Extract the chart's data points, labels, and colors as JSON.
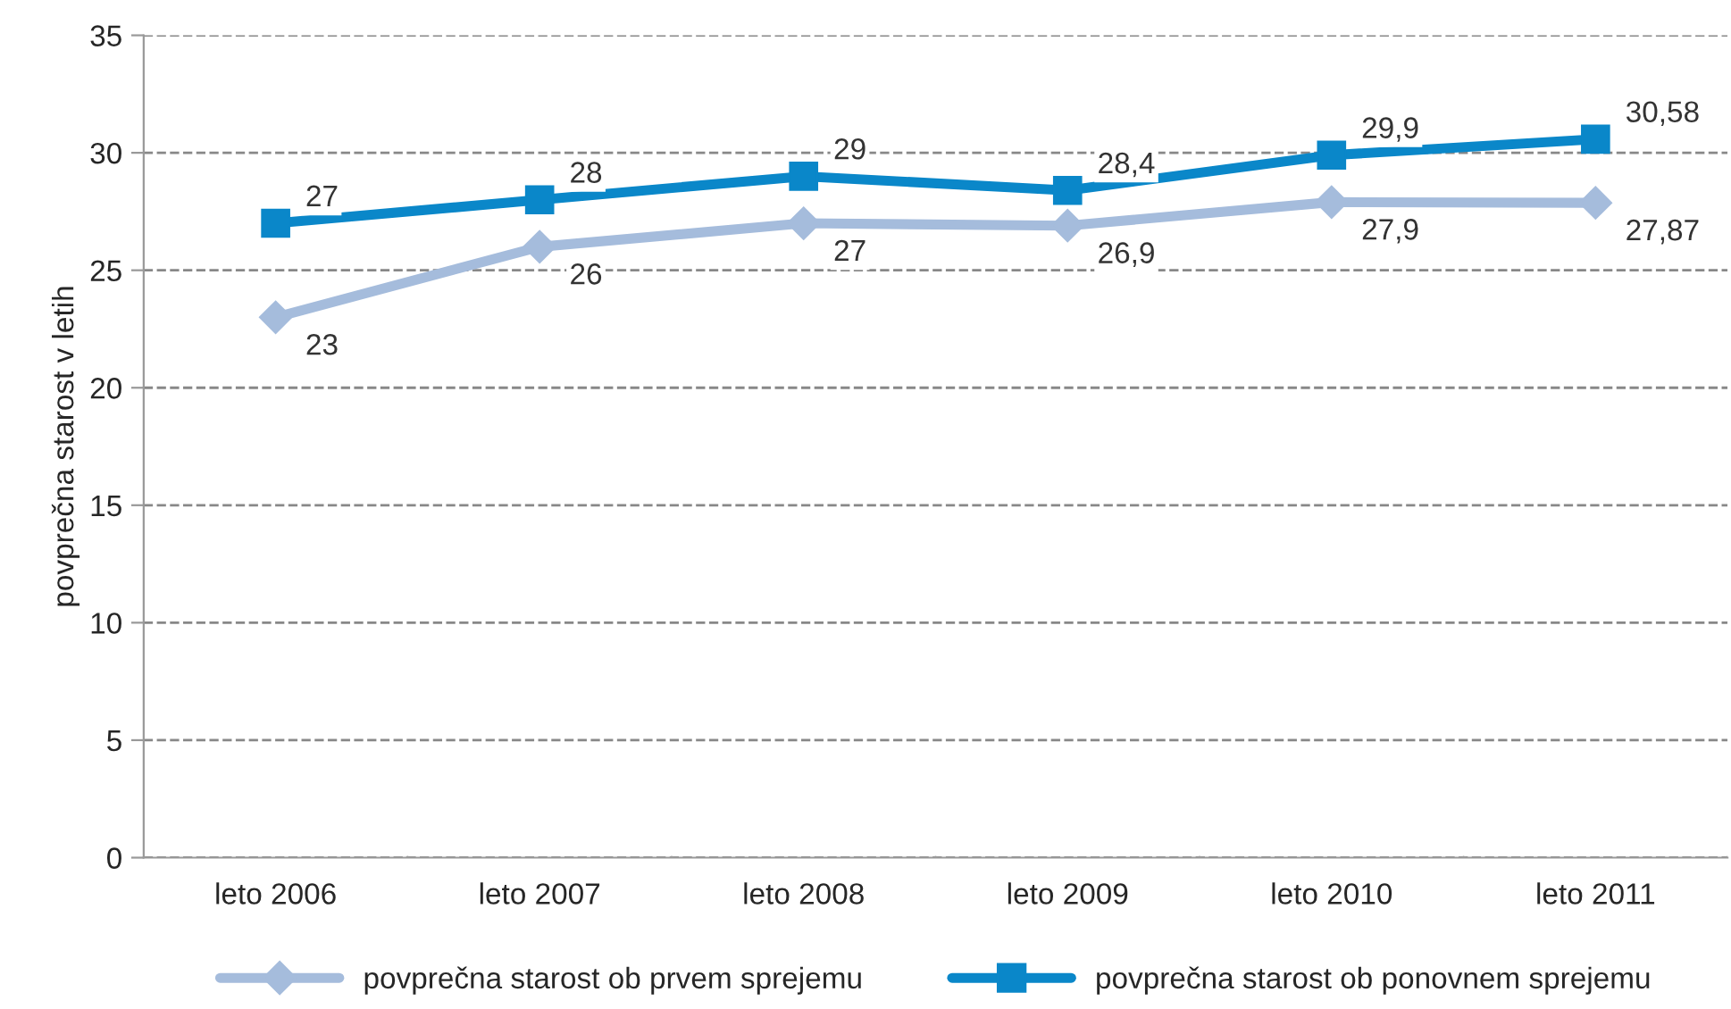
{
  "chart_data": {
    "type": "line",
    "ylabel": "povprečna starost v letih",
    "categories": [
      "leto 2006",
      "leto 2007",
      "leto 2008",
      "leto 2009",
      "leto 2010",
      "leto 2011"
    ],
    "series": [
      {
        "name": "povprečna starost ob prvem sprejemu",
        "color": "#a5bcdc",
        "marker": "diamond",
        "values": [
          23,
          26,
          27,
          26.9,
          27.9,
          27.87
        ],
        "value_labels": [
          "23",
          "26",
          "27",
          "26,9",
          "27,9",
          "27,87"
        ]
      },
      {
        "name": "povprečna starost ob ponovnem sprejemu",
        "color": "#0a87c9",
        "marker": "square",
        "values": [
          27,
          28,
          29,
          28.4,
          29.9,
          30.58
        ],
        "value_labels": [
          "27",
          "28",
          "29",
          "28,4",
          "29,9",
          "30,58"
        ]
      }
    ],
    "ylim": [
      0,
      35
    ],
    "yticks": [
      0,
      5,
      10,
      15,
      20,
      25,
      30,
      35
    ],
    "grid": "y",
    "legend": "bottom",
    "line_style": "solid"
  }
}
